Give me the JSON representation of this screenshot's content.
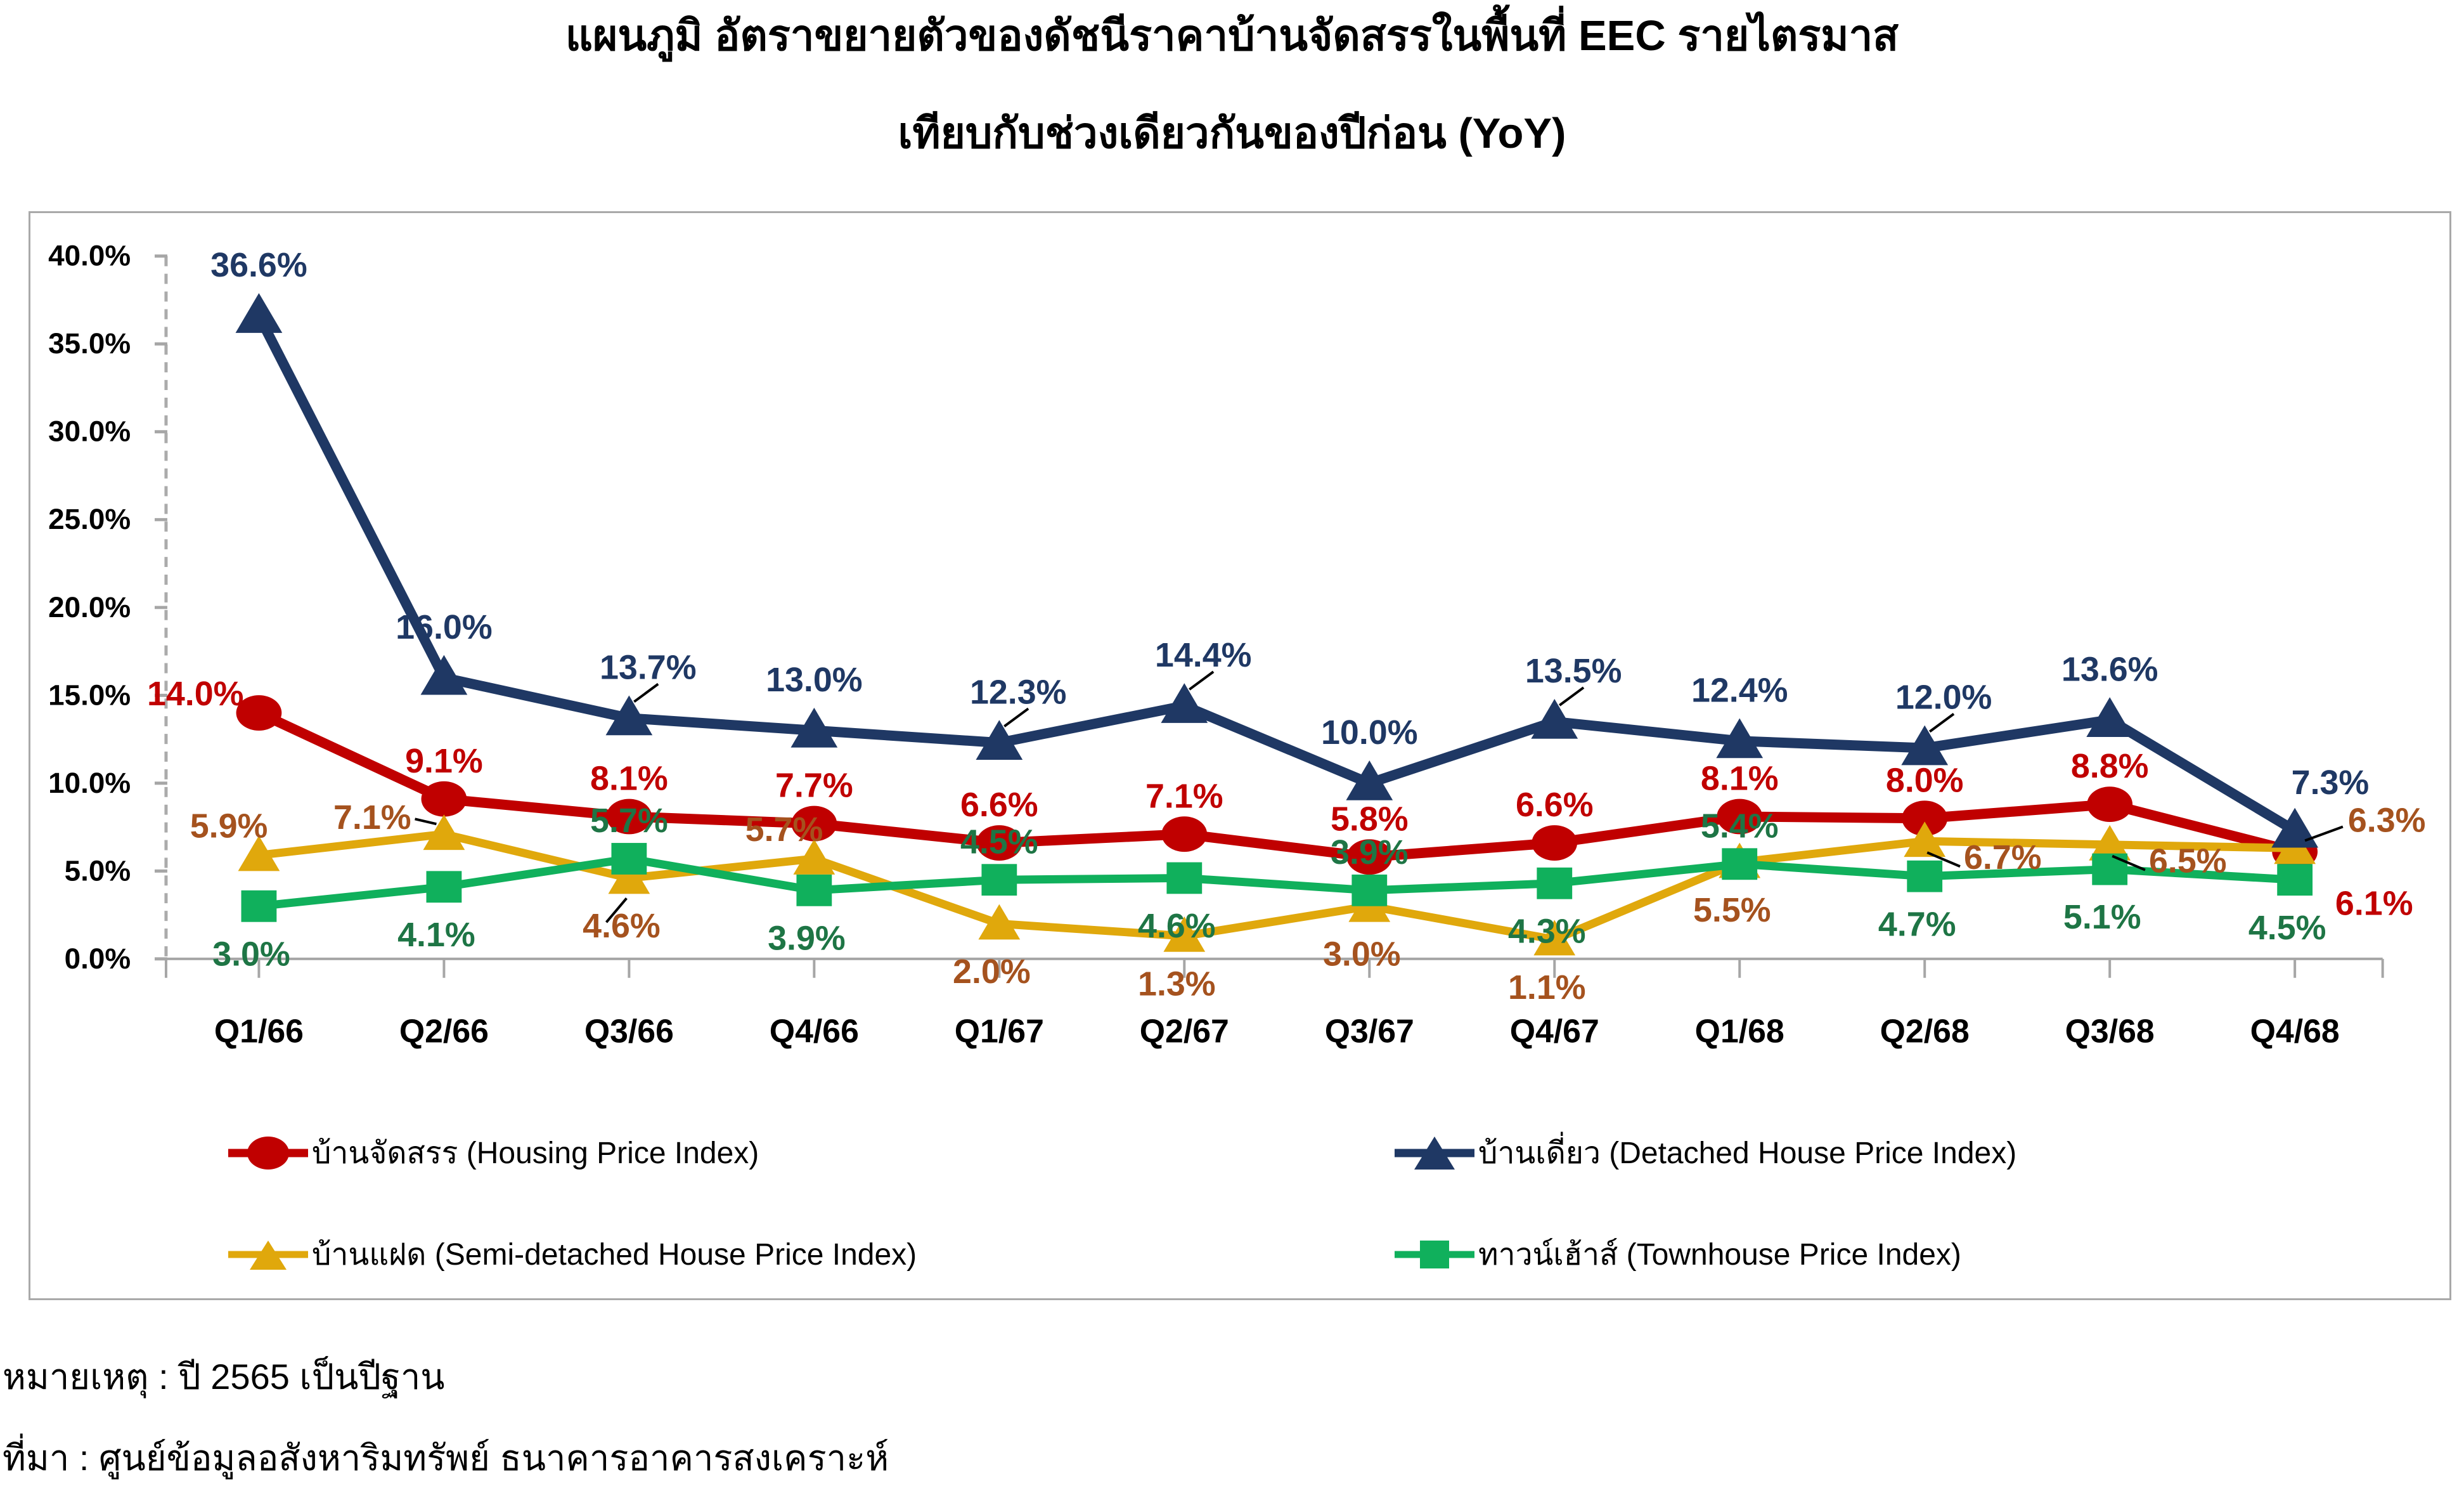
{
  "title": {
    "line1": "แผนภูมิ อัตราขยายตัวของดัชนีราคาบ้านจัดสรรในพื้นที่ EEC รายไตรมาส",
    "line2": "เทียบกับช่วงเดียวกันของปีก่อน (YoY)"
  },
  "notes": {
    "basis": "หมายเหตุ : ปี 2565 เป็นปีฐาน",
    "source": "ที่มา : ศูนย์ข้อมูลอสังหาริมทรัพย์ ธนาคารอาคารสงเคราะห์"
  },
  "colors": {
    "axis": "#A6A6A6",
    "axis_dotted": "#ABABAB",
    "box_border": "#A9A9A9",
    "tick_text": "#000000",
    "leader": "#000000",
    "background": "#FFFFFF"
  },
  "chart_data": {
    "type": "line",
    "categories": [
      "Q1/66",
      "Q2/66",
      "Q3/66",
      "Q4/66",
      "Q1/67",
      "Q2/67",
      "Q3/67",
      "Q4/67",
      "Q1/68",
      "Q2/68",
      "Q3/68",
      "Q4/68"
    ],
    "ylim": [
      0,
      40
    ],
    "ytick_step": 5,
    "ytick_labels": [
      "0.0%",
      "5.0%",
      "10.0%",
      "15.0%",
      "20.0%",
      "25.0%",
      "30.0%",
      "35.0%",
      "40.0%"
    ],
    "value_format": "percent_1dp",
    "grid": false,
    "legend_position": "bottom-inside-two-columns",
    "series": [
      {
        "id": "housing",
        "name": "บ้านจัดสรร (Housing Price Index)",
        "marker": "circle",
        "color": "#C00000",
        "label_color": "#C00000",
        "values": [
          14.0,
          9.1,
          8.1,
          7.7,
          6.6,
          7.1,
          5.8,
          6.6,
          8.1,
          8.0,
          8.8,
          6.1
        ],
        "label_pos": [
          "left",
          "above",
          "above",
          "above",
          "above",
          "above",
          "above",
          "above",
          "above",
          "above",
          "above",
          "below-right"
        ],
        "label_leader": [
          0,
          0,
          0,
          0,
          0,
          0,
          0,
          0,
          0,
          0,
          0,
          0
        ]
      },
      {
        "id": "detached",
        "name": "บ้านเดี่ยว (Detached House Price Index)",
        "marker": "triangle",
        "color": "#1F3864",
        "label_color": "#1F3864",
        "values": [
          36.6,
          16.0,
          13.7,
          13.0,
          12.3,
          14.4,
          10.0,
          13.5,
          12.4,
          12.0,
          13.6,
          7.3
        ],
        "label_pos": [
          "above",
          "above",
          "above",
          "above",
          "above",
          "above",
          "above",
          "above",
          "above",
          "above",
          "above",
          "above-right"
        ],
        "label_leader": [
          0,
          0,
          1,
          0,
          1,
          1,
          0,
          1,
          0,
          1,
          0,
          0
        ]
      },
      {
        "id": "semi",
        "name": "บ้านแฝด (Semi-detached House Price Index)",
        "marker": "triangle",
        "color": "#E0A80C",
        "label_color": "#A5521E",
        "values": [
          5.9,
          7.1,
          4.6,
          5.7,
          2.0,
          1.3,
          3.0,
          1.1,
          5.5,
          6.7,
          6.5,
          6.3
        ],
        "label_pos": [
          "above-left",
          "left-leader",
          "below",
          "above-left",
          "below",
          "below",
          "below",
          "below",
          "below",
          "right",
          "right",
          "right-up"
        ],
        "label_leader": [
          0,
          1,
          1,
          0,
          0,
          0,
          0,
          0,
          0,
          1,
          1,
          1
        ]
      },
      {
        "id": "town",
        "name": "ทาวน์เฮ้าส์ (Townhouse Price Index)",
        "marker": "square",
        "color": "#10B05C",
        "label_color": "#1E7545",
        "values": [
          3.0,
          4.1,
          5.7,
          3.9,
          4.5,
          4.6,
          3.9,
          4.3,
          5.4,
          4.7,
          5.1,
          4.5
        ],
        "label_pos": [
          "below",
          "below",
          "above",
          "below",
          "above",
          "below",
          "above",
          "below",
          "above",
          "below",
          "below",
          "below"
        ],
        "label_leader": [
          0,
          0,
          0,
          0,
          0,
          0,
          0,
          0,
          0,
          0,
          0,
          0
        ]
      }
    ],
    "draw_order": [
      "housing",
      "semi",
      "town",
      "detached"
    ]
  }
}
